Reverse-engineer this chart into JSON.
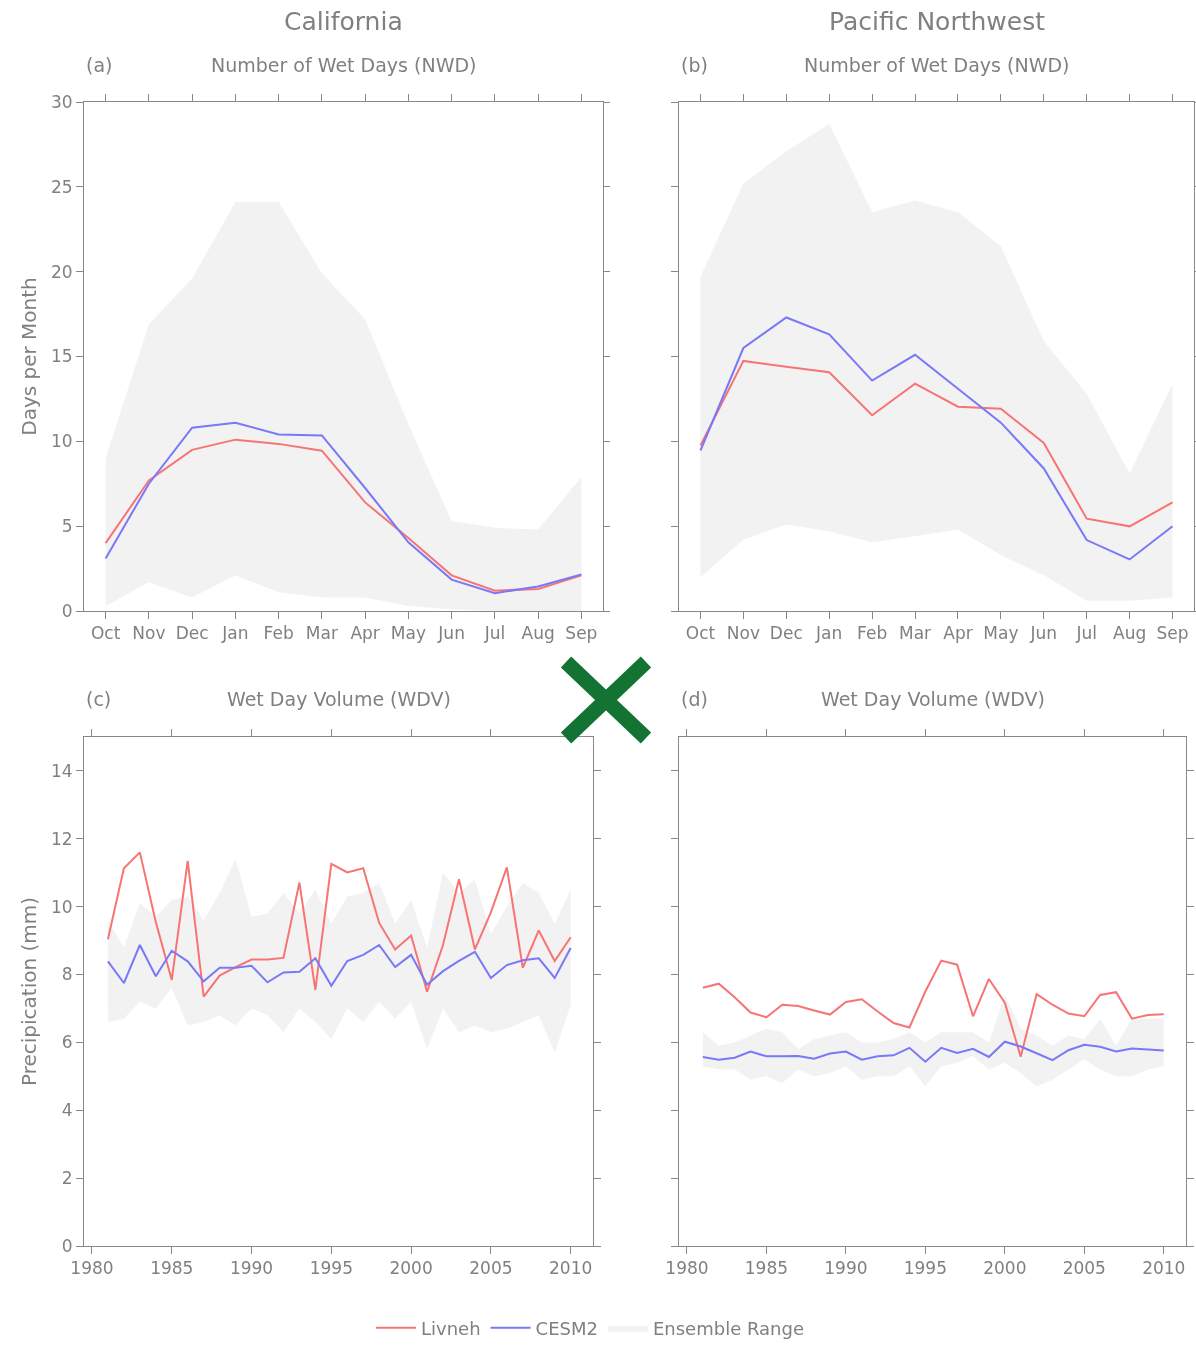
{
  "chart_data": [
    {
      "type": "line",
      "title": "California",
      "subtitle": "Number of Wet Days (NWD)",
      "ylabel": "Days per Month",
      "annotations": [
        "(a)"
      ],
      "categories": [
        "Oct",
        "Nov",
        "Dec",
        "Jan",
        "Feb",
        "Mar",
        "Apr",
        "May",
        "Jun",
        "Jul",
        "Aug",
        "Sep"
      ],
      "ylim": [
        0,
        30
      ],
      "yticks": [
        0,
        5,
        10,
        15,
        20,
        25,
        30
      ],
      "series": [
        {
          "color": "#f87474",
          "values": [
            4.0,
            7.7,
            9.5,
            10.1,
            9.85,
            9.45,
            6.4,
            4.3,
            2.1,
            1.2,
            1.3,
            2.1
          ]
        },
        {
          "color": "#7878f8",
          "values": [
            3.1,
            7.5,
            10.8,
            11.1,
            10.4,
            10.35,
            7.25,
            4.05,
            1.85,
            1.05,
            1.45,
            2.15
          ],
          "lower": [
            0.3,
            1.7,
            0.8,
            2.1,
            1.1,
            0.8,
            0.8,
            0.3,
            0.1,
            0,
            0,
            0
          ],
          "upper": [
            9.0,
            16.9,
            19.6,
            24.1,
            24.1,
            19.9,
            17.2,
            11.0,
            5.3,
            4.9,
            4.8,
            7.9
          ]
        }
      ]
    },
    {
      "type": "line",
      "title": "Pacific Northwest",
      "subtitle": "Number of Wet Days (NWD)",
      "annotations": [
        "(b)"
      ],
      "tick_labels": "x",
      "categories": [
        "Oct",
        "Nov",
        "Dec",
        "Jan",
        "Feb",
        "Mar",
        "Apr",
        "May",
        "Jun",
        "Jul",
        "Aug",
        "Sep"
      ],
      "ylim": [
        0,
        30
      ],
      "yticks": [
        0,
        5,
        10,
        15,
        20,
        25,
        30
      ],
      "series": [
        {
          "color": "#f87474",
          "values": [
            9.75,
            14.74,
            14.4,
            14.07,
            11.54,
            13.4,
            12.04,
            11.92,
            9.9,
            5.44,
            4.99,
            6.4
          ]
        },
        {
          "color": "#7878f8",
          "values": [
            9.46,
            15.5,
            17.3,
            16.3,
            13.58,
            15.1,
            13.1,
            11.1,
            8.4,
            4.18,
            3.04,
            5.0
          ],
          "lower": [
            2.0,
            4.2,
            5.1,
            4.7,
            4.05,
            4.4,
            4.8,
            3.3,
            2.1,
            0.6,
            0.6,
            0.8
          ],
          "upper": [
            19.7,
            25.2,
            27.1,
            28.7,
            23.5,
            24.2,
            23.5,
            21.5,
            15.9,
            12.8,
            8.1,
            13.4
          ]
        }
      ]
    },
    {
      "type": "line",
      "title": "Wet Day Volume (WDV)",
      "ylabel": "Precipication (mm)",
      "annotations": [
        "(c)",
        "Ensemble Range"
      ],
      "legend": "bottom",
      "x": [
        1981,
        1982,
        1983,
        1984,
        1985,
        1986,
        1987,
        1988,
        1989,
        1990,
        1991,
        1992,
        1993,
        1994,
        1995,
        1996,
        1997,
        1998,
        1999,
        2000,
        2001,
        2002,
        2003,
        2004,
        2005,
        2006,
        2007,
        2008,
        2009,
        2010
      ],
      "xlim": [
        1979.5,
        2011.4
      ],
      "xticks": [
        1980,
        1985,
        1990,
        1995,
        2000,
        2005,
        2010
      ],
      "ylim": [
        0,
        15
      ],
      "yticks": [
        0,
        2,
        4,
        6,
        8,
        10,
        12,
        14
      ],
      "series": [
        {
          "name": "Livneh",
          "color": "#f87474",
          "values": [
            9.04,
            11.13,
            11.6,
            9.55,
            7.84,
            11.35,
            7.35,
            7.97,
            8.22,
            8.44,
            8.44,
            8.49,
            10.71,
            7.55,
            11.26,
            11.01,
            11.13,
            9.52,
            8.74,
            9.15,
            7.49,
            8.87,
            10.81,
            8.74,
            9.83,
            11.16,
            8.2,
            9.3,
            8.4,
            9.1
          ]
        },
        {
          "name": "CESM2",
          "color": "#7878f8",
          "values": [
            8.39,
            7.75,
            8.87,
            7.95,
            8.7,
            8.39,
            7.8,
            8.2,
            8.2,
            8.26,
            7.77,
            8.06,
            8.08,
            8.48,
            7.67,
            8.4,
            8.58,
            8.87,
            8.22,
            8.58,
            7.7,
            8.1,
            8.4,
            8.67,
            7.9,
            8.28,
            8.42,
            8.48,
            7.9,
            8.78
          ],
          "lower": [
            6.6,
            6.7,
            7.2,
            7.0,
            7.6,
            6.5,
            6.6,
            6.8,
            6.5,
            7.0,
            6.8,
            6.3,
            7.0,
            6.6,
            6.1,
            7.0,
            6.6,
            7.2,
            6.7,
            7.2,
            5.8,
            7.0,
            6.3,
            6.5,
            6.3,
            6.4,
            6.6,
            6.8,
            5.7,
            7.1
          ],
          "upper": [
            9.6,
            8.8,
            10.1,
            9.7,
            10.2,
            10.3,
            9.6,
            10.4,
            11.4,
            9.7,
            9.8,
            10.4,
            9.8,
            10.5,
            9.5,
            10.3,
            10.4,
            10.7,
            9.5,
            10.2,
            8.8,
            11.0,
            10.4,
            10.8,
            9.2,
            10.0,
            10.7,
            10.4,
            9.5,
            10.5
          ]
        }
      ]
    },
    {
      "type": "line",
      "title": "Wet Day Volume (WDV)",
      "annotations": [
        "(d)"
      ],
      "tick_labels": "x",
      "x": [
        1981,
        1982,
        1983,
        1984,
        1985,
        1986,
        1987,
        1988,
        1989,
        1990,
        1991,
        1992,
        1993,
        1994,
        1995,
        1996,
        1997,
        1998,
        1999,
        2000,
        2001,
        2002,
        2003,
        2004,
        2005,
        2006,
        2007,
        2008,
        2009,
        2010
      ],
      "xlim": [
        1979.5,
        2011.4
      ],
      "xticks": [
        1980,
        1985,
        1990,
        1995,
        2000,
        2005,
        2010
      ],
      "ylim": [
        0,
        15
      ],
      "yticks": [
        0,
        2,
        4,
        6,
        8,
        10,
        12,
        14
      ],
      "series": [
        {
          "color": "#f87474",
          "values": [
            7.61,
            7.73,
            7.33,
            6.88,
            6.74,
            7.11,
            7.07,
            6.94,
            6.82,
            7.19,
            7.27,
            6.91,
            6.57,
            6.44,
            7.5,
            8.41,
            8.29,
            6.77,
            7.87,
            7.17,
            5.58,
            7.42,
            7.11,
            6.85,
            6.77,
            7.4,
            7.48,
            6.7,
            6.81,
            6.83
          ]
        },
        {
          "color": "#7878f8",
          "values": [
            5.57,
            5.49,
            5.55,
            5.73,
            5.59,
            5.59,
            5.6,
            5.52,
            5.67,
            5.73,
            5.49,
            5.59,
            5.62,
            5.84,
            5.43,
            5.84,
            5.69,
            5.81,
            5.57,
            6.02,
            5.88,
            5.68,
            5.48,
            5.77,
            5.93,
            5.87,
            5.73,
            5.82,
            5.79,
            5.76
          ],
          "lower": [
            5.3,
            5.2,
            5.2,
            4.9,
            5.0,
            4.8,
            5.2,
            5.0,
            5.1,
            5.3,
            4.9,
            5.0,
            5.0,
            5.3,
            4.7,
            5.3,
            5.4,
            5.6,
            5.2,
            5.4,
            5.1,
            4.7,
            4.9,
            5.2,
            5.5,
            5.2,
            5.0,
            5.0,
            5.2,
            5.3
          ],
          "upper": [
            6.3,
            5.9,
            6.0,
            6.2,
            6.4,
            6.3,
            5.8,
            6.1,
            6.2,
            6.3,
            6.0,
            6.0,
            6.1,
            6.3,
            6.0,
            6.3,
            6.3,
            6.3,
            6.0,
            7.4,
            6.4,
            6.2,
            5.9,
            6.2,
            6.1,
            6.7,
            5.9,
            6.7,
            6.7,
            6.7
          ]
        }
      ]
    }
  ]
}
